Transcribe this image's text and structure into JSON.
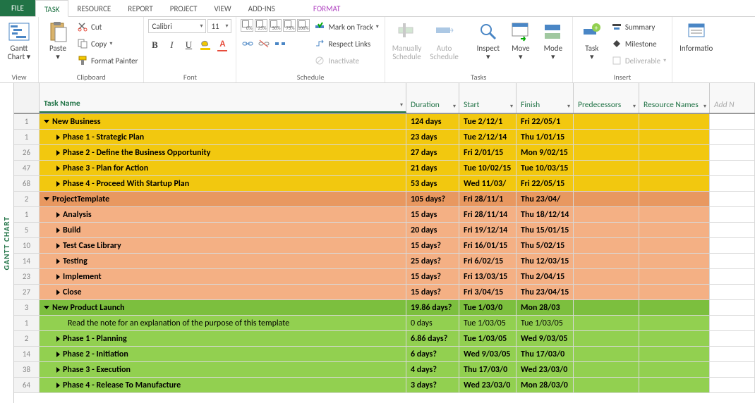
{
  "tabs": {
    "file": "FILE",
    "task": "TASK",
    "resource": "RESOURCE",
    "report": "REPORT",
    "project": "PROJECT",
    "view": "VIEW",
    "addins": "ADD-INS",
    "format": "FORMAT"
  },
  "ribbon": {
    "view": {
      "gantt": "Gantt\nChart",
      "label": "View"
    },
    "clipboard": {
      "paste": "Paste",
      "cut": "Cut",
      "copy": "Copy",
      "fmtpainter": "Format Painter",
      "label": "Clipboard"
    },
    "font": {
      "name": "Calibri",
      "size": "11",
      "label": "Font",
      "percents": [
        "0%",
        "25%",
        "50%",
        "75%",
        "100%"
      ]
    },
    "schedule": {
      "mark": "Mark on Track",
      "respect": "Respect Links",
      "inactivate": "Inactivate",
      "label": "Schedule"
    },
    "tasks": {
      "manual": "Manually\nSchedule",
      "auto": "Auto\nSchedule",
      "inspect": "Inspect",
      "move": "Move",
      "mode": "Mode",
      "label": "Tasks"
    },
    "insert": {
      "task": "Task",
      "summary": "Summary",
      "milestone": "Milestone",
      "deliverable": "Deliverable",
      "label": "Insert"
    },
    "info": "Informatio"
  },
  "columns": {
    "task": "Task Name",
    "dur": "Duration",
    "start": "Start",
    "finish": "Finish",
    "pred": "Predecessors",
    "res": "Resource Names",
    "add": "Add N"
  },
  "rows": [
    {
      "n": "1",
      "bg": "bg-yellow",
      "lvl": "lvl0",
      "tri": "open",
      "name": "New Business",
      "dur": "124 days",
      "start": "Tue 2/12/1",
      "fin": "Fri 22/05/1"
    },
    {
      "n": "1",
      "bg": "bg-yellowL",
      "lvl": "lvl1",
      "tri": "closed",
      "name": "Phase 1 - Strategic Plan",
      "dur": "23 days",
      "start": "Tue 2/12/14",
      "fin": "Thu 1/01/15"
    },
    {
      "n": "26",
      "bg": "bg-yellowL",
      "lvl": "lvl1",
      "tri": "closed",
      "name": "Phase 2 - Define the Business Opportunity",
      "dur": "27 days",
      "start": "Fri 2/01/15",
      "fin": "Mon 9/02/15"
    },
    {
      "n": "47",
      "bg": "bg-yellowL",
      "lvl": "lvl1",
      "tri": "closed",
      "name": "Phase 3 - Plan for Action",
      "dur": "21 days",
      "start": "Tue 10/02/15",
      "fin": "Tue 10/03/15"
    },
    {
      "n": "68",
      "bg": "bg-yellowL",
      "lvl": "lvl1",
      "tri": "closed",
      "name": "Phase 4 - Proceed With Startup Plan",
      "dur": "53 days",
      "start": "Wed 11/03/",
      "fin": "Fri 22/05/15"
    },
    {
      "n": "2",
      "bg": "bg-orangeD",
      "lvl": "lvl0",
      "tri": "open",
      "name": "ProjectTemplate",
      "dur": "105 days?",
      "start": "Fri 28/11/1",
      "fin": "Thu 23/04/"
    },
    {
      "n": "1",
      "bg": "bg-orange",
      "lvl": "lvl1b",
      "tri": "closed",
      "name": "Analysis",
      "dur": "15 days",
      "start": "Fri 28/11/14",
      "fin": "Thu 18/12/14"
    },
    {
      "n": "5",
      "bg": "bg-orange",
      "lvl": "lvl1b",
      "tri": "closed",
      "name": "Build",
      "dur": "20 days",
      "start": "Fri 19/12/14",
      "fin": "Thu 15/01/15"
    },
    {
      "n": "10",
      "bg": "bg-orange",
      "lvl": "lvl1b",
      "tri": "closed",
      "name": "Test Case Library",
      "dur": "15 days?",
      "start": "Fri 16/01/15",
      "fin": "Thu 5/02/15"
    },
    {
      "n": "14",
      "bg": "bg-orange",
      "lvl": "lvl1b",
      "tri": "closed",
      "name": "Testing",
      "dur": "25 days?",
      "start": "Fri 6/02/15",
      "fin": "Thu 12/03/15"
    },
    {
      "n": "23",
      "bg": "bg-orange",
      "lvl": "lvl1b",
      "tri": "closed",
      "name": "Implement",
      "dur": "15 days?",
      "start": "Fri 13/03/15",
      "fin": "Thu 2/04/15"
    },
    {
      "n": "27",
      "bg": "bg-orange",
      "lvl": "lvl1b",
      "tri": "closed",
      "name": "Close",
      "dur": "15 days?",
      "start": "Fri 3/04/15",
      "fin": "Thu 23/04/15"
    },
    {
      "n": "3",
      "bg": "bg-greenD",
      "lvl": "lvl0",
      "tri": "open",
      "name": "New Product Launch",
      "dur": "19.86 days?",
      "start": "Tue 1/03/0",
      "fin": "Mon 28/03"
    },
    {
      "n": "1",
      "bg": "bg-green",
      "lvl": "lvl2",
      "tri": "",
      "name": "Read the note for an explanation of the purpose of this template",
      "dur": "0 days",
      "start": "Tue 1/03/05",
      "fin": "Tue 1/03/05"
    },
    {
      "n": "2",
      "bg": "bg-green",
      "lvl": "lvl1b",
      "tri": "closed",
      "name": "Phase 1 - Planning",
      "dur": "6.86 days?",
      "start": "Tue 1/03/05",
      "fin": "Wed 9/03/05"
    },
    {
      "n": "14",
      "bg": "bg-green",
      "lvl": "lvl1b",
      "tri": "closed",
      "name": "Phase 2 - Initiation",
      "dur": "6 days?",
      "start": "Wed 9/03/05",
      "fin": "Thu 17/03/0"
    },
    {
      "n": "38",
      "bg": "bg-green",
      "lvl": "lvl1b",
      "tri": "closed",
      "name": "Phase 3 - Execution",
      "dur": "4 days?",
      "start": "Thu 17/03/0",
      "fin": "Wed 23/03/0"
    },
    {
      "n": "64",
      "bg": "bg-green",
      "lvl": "lvl1b",
      "tri": "closed",
      "name": "Phase 4 - Release To Manufacture",
      "dur": "3 days?",
      "start": "Wed 23/03/0",
      "fin": "Mon 28/03/0"
    }
  ],
  "sidelabel": "GANTT CHART"
}
